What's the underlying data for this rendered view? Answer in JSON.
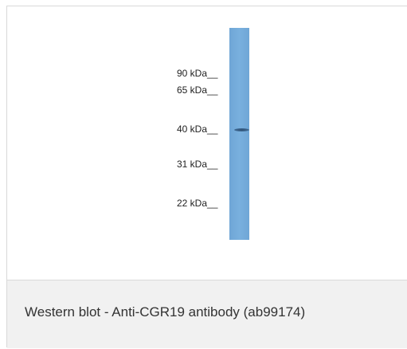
{
  "blot": {
    "markers": [
      "90 kDa__",
      "65 kDa__",
      "40 kDa__",
      "31 kDa__",
      "22 kDa__"
    ]
  },
  "caption": "Western blot - Anti-CGR19 antibody (ab99174)",
  "colors": {
    "lane": "#79b0de",
    "band": "#2d4f73",
    "caption_background": "#f1f1f1",
    "border": "#d9d9d9"
  }
}
